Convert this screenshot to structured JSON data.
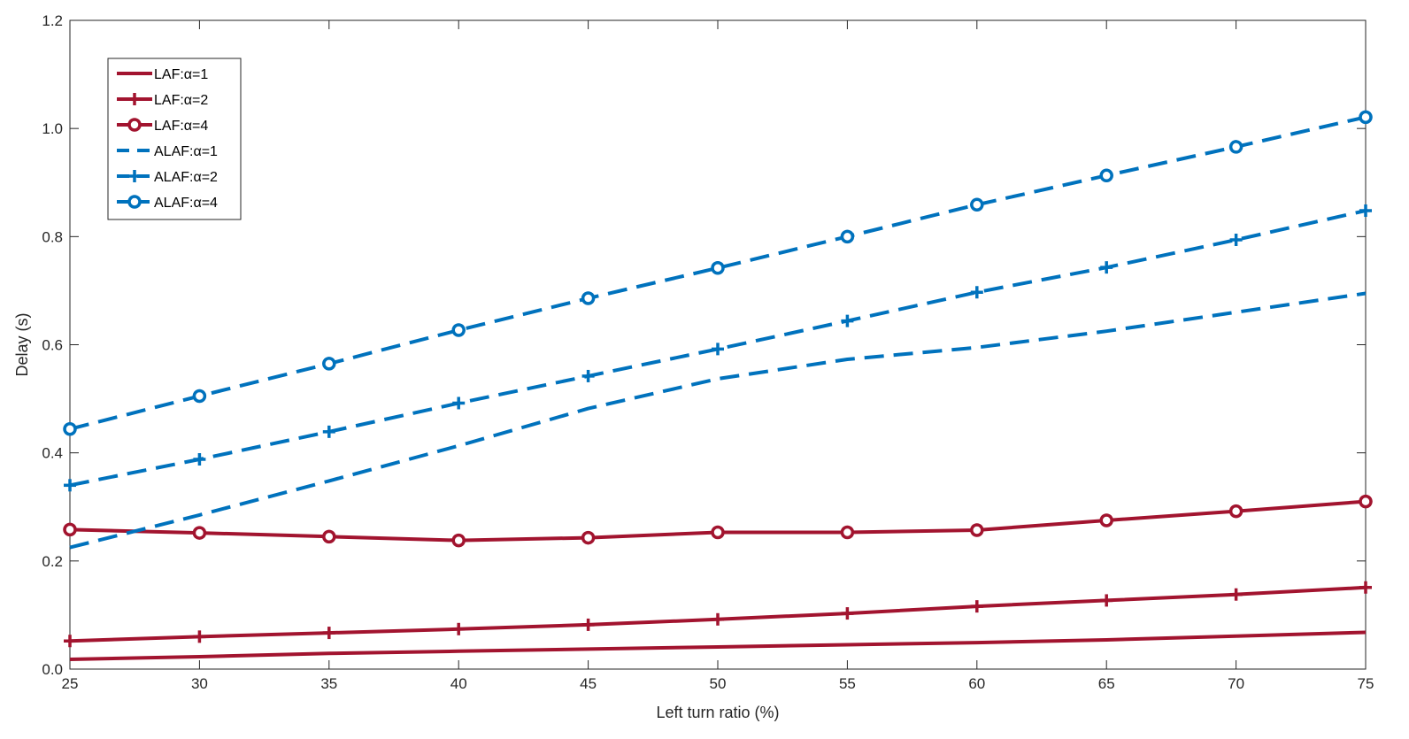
{
  "chart_data": {
    "type": "line",
    "title": "",
    "xlabel": "Left turn ratio (%)",
    "ylabel": "Delay (s)",
    "xlim": [
      25,
      75
    ],
    "ylim": [
      0,
      1.2
    ],
    "grid": false,
    "legend_position": "top-left",
    "x": [
      25,
      30,
      35,
      40,
      45,
      50,
      55,
      60,
      65,
      70,
      75
    ],
    "xticks": [
      "25",
      "30",
      "35",
      "40",
      "45",
      "50",
      "55",
      "60",
      "65",
      "70",
      "75"
    ],
    "yticks": [
      "0.0",
      "0.2",
      "0.4",
      "0.6",
      "0.8",
      "1.0",
      "1.2"
    ],
    "colors": {
      "LAF": "#a2142f",
      "ALAF": "#0072bd"
    },
    "series": [
      {
        "name": "LAF:α=1",
        "color": "#a2142f",
        "dash": false,
        "marker": "none",
        "values": [
          0.018,
          0.023,
          0.029,
          0.033,
          0.037,
          0.041,
          0.045,
          0.049,
          0.054,
          0.061,
          0.068
        ]
      },
      {
        "name": "LAF:α=2",
        "color": "#a2142f",
        "dash": false,
        "marker": "plus",
        "values": [
          0.052,
          0.06,
          0.067,
          0.074,
          0.082,
          0.092,
          0.103,
          0.116,
          0.127,
          0.138,
          0.151
        ]
      },
      {
        "name": "LAF:α=4",
        "color": "#a2142f",
        "dash": false,
        "marker": "circle",
        "values": [
          0.258,
          0.252,
          0.245,
          0.238,
          0.243,
          0.253,
          0.253,
          0.257,
          0.275,
          0.292,
          0.31
        ]
      },
      {
        "name": "ALAF:α=1",
        "color": "#0072bd",
        "dash": true,
        "marker": "none",
        "values": [
          0.225,
          0.285,
          0.348,
          0.413,
          0.482,
          0.537,
          0.573,
          0.595,
          0.625,
          0.66,
          0.695
        ]
      },
      {
        "name": "ALAF:α=2",
        "color": "#0072bd",
        "dash": true,
        "marker": "plus",
        "values": [
          0.34,
          0.388,
          0.439,
          0.492,
          0.542,
          0.592,
          0.644,
          0.697,
          0.743,
          0.794,
          0.848
        ]
      },
      {
        "name": "ALAF:α=4",
        "color": "#0072bd",
        "dash": true,
        "marker": "circle",
        "values": [
          0.444,
          0.505,
          0.565,
          0.627,
          0.686,
          0.742,
          0.8,
          0.859,
          0.913,
          0.966,
          1.021
        ]
      }
    ]
  }
}
